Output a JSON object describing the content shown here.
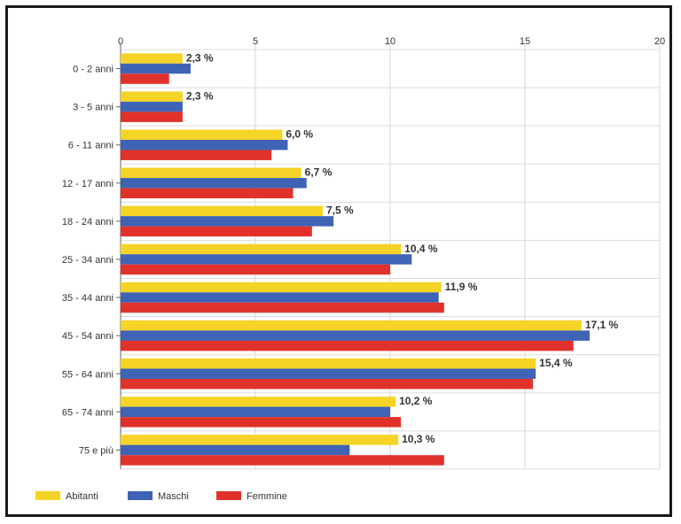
{
  "chart_data": {
    "type": "bar",
    "orientation": "horizontal",
    "categories": [
      "0 - 2 anni",
      "3 - 5 anni",
      "6 - 11 anni",
      "12 - 17 anni",
      "18 - 24 anni",
      "25 - 34 anni",
      "35 - 44 anni",
      "45 - 54 anni",
      "55 - 64 anni",
      "65 - 74 anni",
      "75 e più"
    ],
    "xlim": [
      0,
      20
    ],
    "xticks": [
      "0",
      "5",
      "10",
      "15",
      "20"
    ],
    "grid": true,
    "legend_position": "bottom-left",
    "series": [
      {
        "name": "Abitanti",
        "color": "#f5d327",
        "values": [
          2.3,
          2.3,
          6.0,
          6.7,
          7.5,
          10.4,
          11.9,
          17.1,
          15.4,
          10.2,
          10.3
        ]
      },
      {
        "name": "Maschi",
        "color": "#3f63b5",
        "values": [
          2.6,
          2.3,
          6.2,
          6.9,
          7.9,
          10.8,
          11.8,
          17.4,
          15.4,
          10.0,
          8.5
        ]
      },
      {
        "name": "Femmine",
        "color": "#e0322b",
        "values": [
          1.8,
          2.3,
          5.6,
          6.4,
          7.1,
          10.0,
          12.0,
          16.8,
          15.3,
          10.4,
          12.0
        ]
      }
    ],
    "data_labels": [
      "2,3 %",
      "2,3 %",
      "6,0 %",
      "6,7 %",
      "7,5 %",
      "10,4 %",
      "11,9 %",
      "17,1 %",
      "15,4 %",
      "10,2 %",
      "10,3 %"
    ]
  }
}
